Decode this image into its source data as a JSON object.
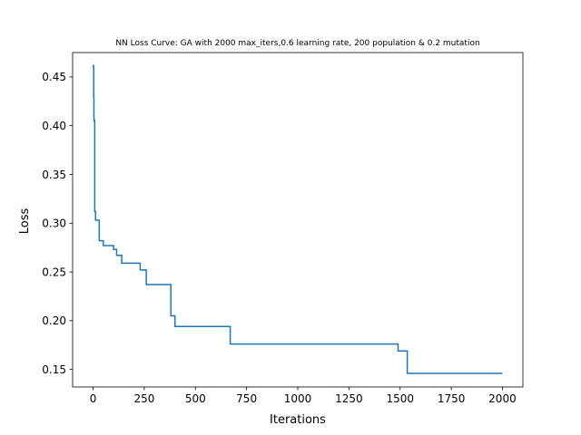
{
  "chart_data": {
    "type": "line",
    "title": "NN Loss Curve: GA with 2000 max_iters,0.6 learning rate, 200 population & 0.2 mutation",
    "xlabel": "Iterations",
    "ylabel": "Loss",
    "xlim": [
      -100,
      2100
    ],
    "ylim": [
      0.132,
      0.475
    ],
    "grid": false,
    "legend": "none",
    "step": true,
    "x_ticks": [
      {
        "value": 0,
        "label": "0"
      },
      {
        "value": 250,
        "label": "250"
      },
      {
        "value": 500,
        "label": "500"
      },
      {
        "value": 750,
        "label": "750"
      },
      {
        "value": 1000,
        "label": "1000"
      },
      {
        "value": 1250,
        "label": "1250"
      },
      {
        "value": 1500,
        "label": "1500"
      },
      {
        "value": 1750,
        "label": "1750"
      },
      {
        "value": 2000,
        "label": "2000"
      }
    ],
    "y_ticks": [
      {
        "value": 0.15,
        "label": "0.15"
      },
      {
        "value": 0.2,
        "label": "0.20"
      },
      {
        "value": 0.25,
        "label": "0.25"
      },
      {
        "value": 0.3,
        "label": "0.30"
      },
      {
        "value": 0.35,
        "label": "0.35"
      },
      {
        "value": 0.4,
        "label": "0.40"
      },
      {
        "value": 0.45,
        "label": "0.45"
      }
    ],
    "series": [
      {
        "color": "#1f77b4",
        "x": [
          0,
          2,
          3,
          4,
          5,
          8,
          12,
          30,
          50,
          100,
          115,
          140,
          230,
          260,
          380,
          400,
          670,
          1490,
          1535,
          2000
        ],
        "values": [
          0.462,
          0.46,
          0.43,
          0.407,
          0.405,
          0.312,
          0.303,
          0.282,
          0.277,
          0.273,
          0.267,
          0.259,
          0.252,
          0.237,
          0.205,
          0.194,
          0.176,
          0.169,
          0.146,
          0.146
        ]
      }
    ]
  }
}
